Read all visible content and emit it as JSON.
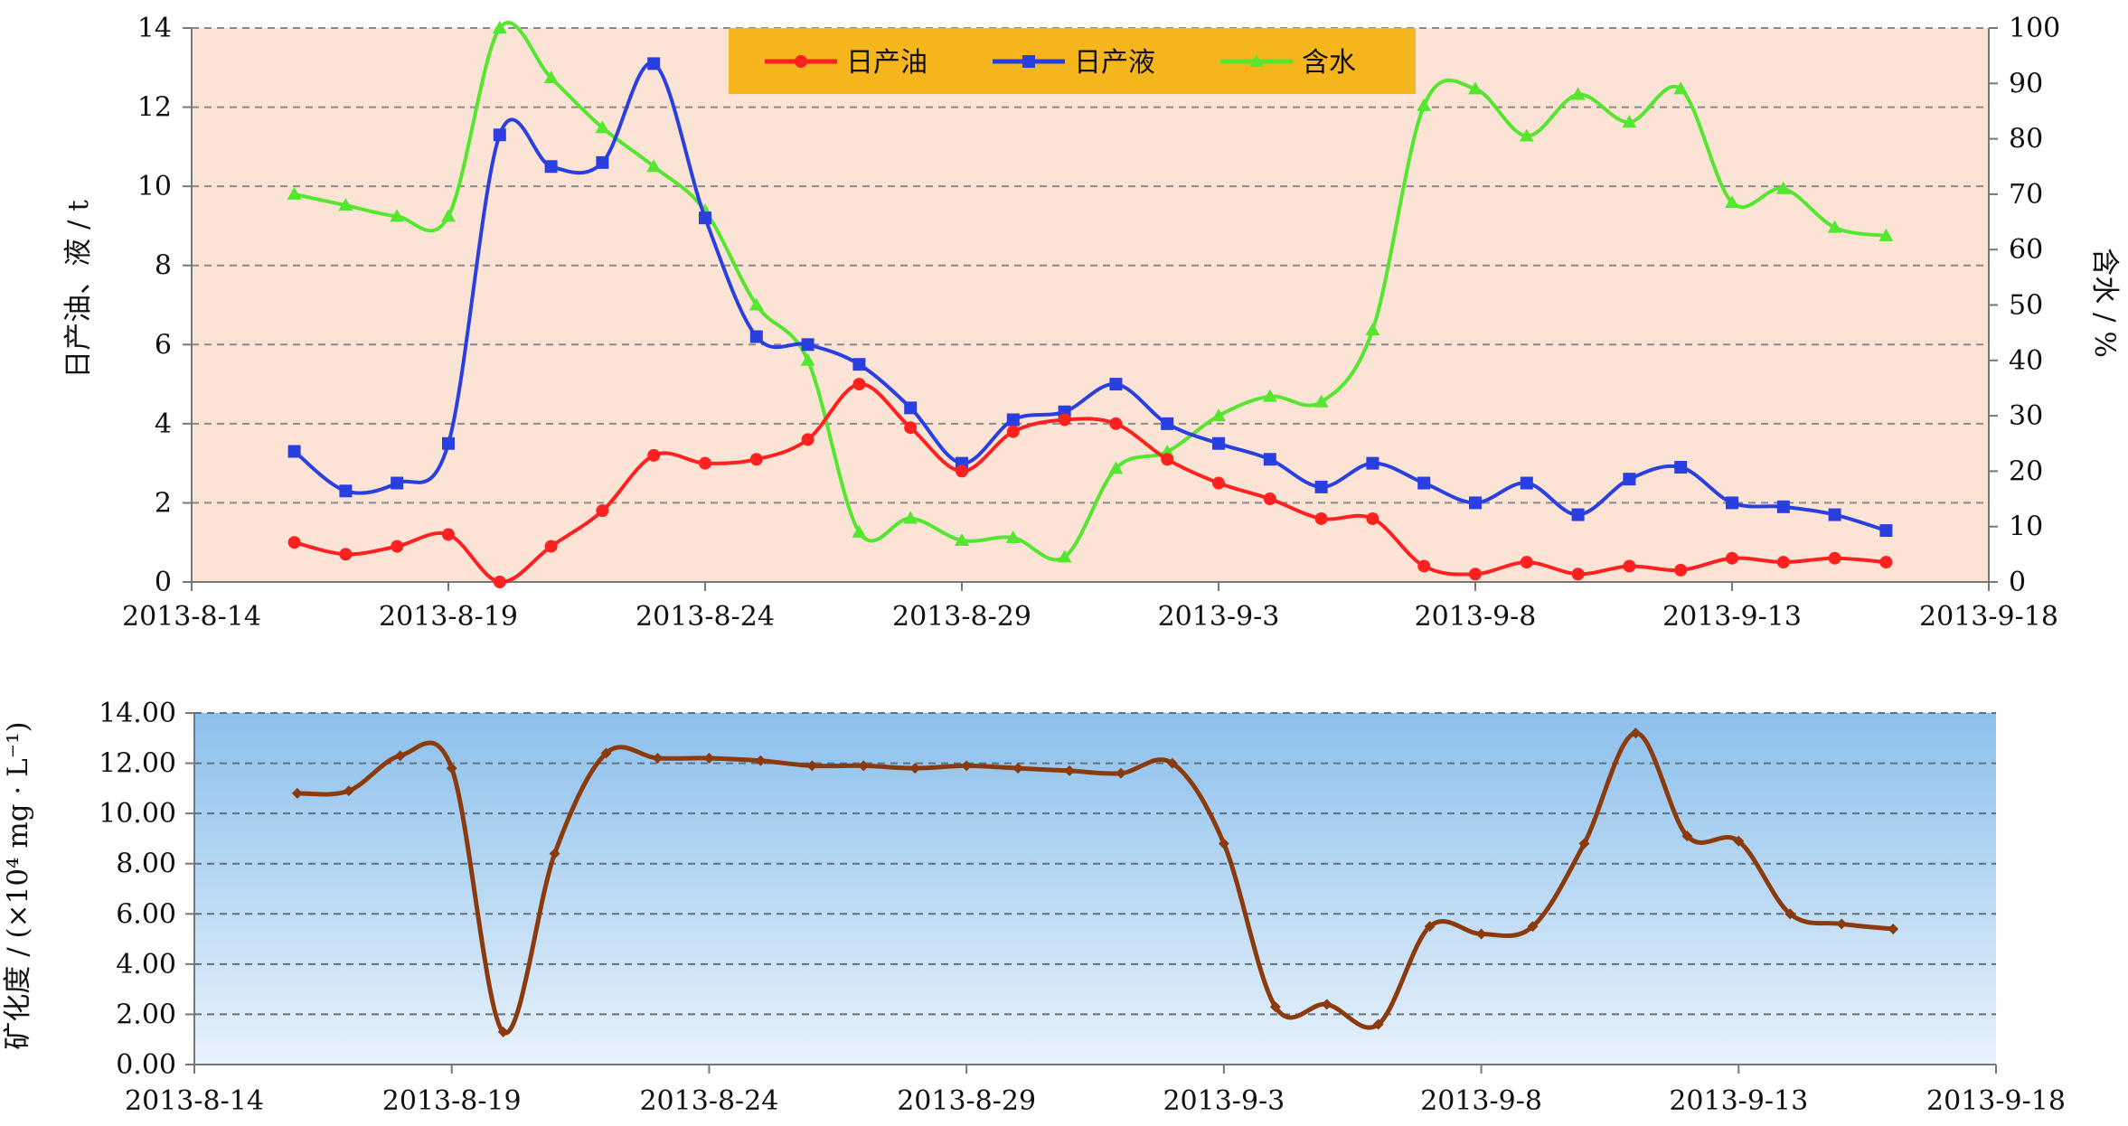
{
  "charts": {
    "top": {
      "type": "line",
      "ylabel_left": "日产油、液 / t",
      "ylabel_right": "含水 / %",
      "x_ticks": [
        "2013-8-14",
        "2013-8-19",
        "2013-8-24",
        "2013-8-29",
        "2013-9-3",
        "2013-9-8",
        "2013-9-13",
        "2013-9-18"
      ],
      "y_left_ticks": [
        "0",
        "2",
        "4",
        "6",
        "8",
        "10",
        "12",
        "14"
      ],
      "y_right_ticks": [
        "0",
        "10",
        "20",
        "30",
        "40",
        "50",
        "60",
        "70",
        "80",
        "90",
        "100"
      ],
      "legend_placement": "top-center",
      "background": "#fbe3d6",
      "legend_background": "#f5b51d",
      "grid": true
    },
    "bottom": {
      "type": "line",
      "ylabel": "矿化度 / (×10⁴ mg · L⁻¹)",
      "x_ticks": [
        "2013-8-14",
        "2013-8-19",
        "2013-8-24",
        "2013-8-29",
        "2013-9-3",
        "2013-9-8",
        "2013-9-13",
        "2013-9-18"
      ],
      "y_ticks": [
        "0.00",
        "2.00",
        "4.00",
        "6.00",
        "8.00",
        "10.00",
        "12.00",
        "14.00"
      ],
      "background_top": "#8cc0ec",
      "background_bottom": "#e8f2fb",
      "grid": true
    }
  },
  "chart_data": [
    {
      "type": "line",
      "x_axis": {
        "type": "date",
        "range": [
          "2013-08-14",
          "2013-09-18"
        ]
      },
      "y_left_range": [
        0,
        14
      ],
      "y_right_range": [
        0,
        100
      ],
      "series": [
        {
          "name": "日产油",
          "axis": "left",
          "color": "#ff2020",
          "marker": "circle",
          "x": [
            "2013-08-16",
            "2013-08-17",
            "2013-08-18",
            "2013-08-19",
            "2013-08-20",
            "2013-08-21",
            "2013-08-22",
            "2013-08-23",
            "2013-08-24",
            "2013-08-25",
            "2013-08-26",
            "2013-08-27",
            "2013-08-28",
            "2013-08-29",
            "2013-08-30",
            "2013-08-31",
            "2013-09-01",
            "2013-09-02",
            "2013-09-03",
            "2013-09-04",
            "2013-09-05",
            "2013-09-06",
            "2013-09-07",
            "2013-09-08",
            "2013-09-09",
            "2013-09-10",
            "2013-09-11",
            "2013-09-12",
            "2013-09-13",
            "2013-09-14",
            "2013-09-15",
            "2013-09-16"
          ],
          "values": [
            1.0,
            0.7,
            0.9,
            1.2,
            0.0,
            0.9,
            1.8,
            3.2,
            3.0,
            3.1,
            3.6,
            5.0,
            3.9,
            2.8,
            3.8,
            4.1,
            4.0,
            3.1,
            2.5,
            2.1,
            1.6,
            1.6,
            0.4,
            0.2,
            0.5,
            0.2,
            0.4,
            0.3,
            0.6,
            0.5,
            0.6,
            0.5
          ]
        },
        {
          "name": "日产液",
          "axis": "left",
          "color": "#2a3fe0",
          "marker": "square",
          "x": [
            "2013-08-16",
            "2013-08-17",
            "2013-08-18",
            "2013-08-19",
            "2013-08-20",
            "2013-08-21",
            "2013-08-22",
            "2013-08-23",
            "2013-08-24",
            "2013-08-25",
            "2013-08-26",
            "2013-08-27",
            "2013-08-28",
            "2013-08-29",
            "2013-08-30",
            "2013-08-31",
            "2013-09-01",
            "2013-09-02",
            "2013-09-03",
            "2013-09-04",
            "2013-09-05",
            "2013-09-06",
            "2013-09-07",
            "2013-09-08",
            "2013-09-09",
            "2013-09-10",
            "2013-09-11",
            "2013-09-12",
            "2013-09-13",
            "2013-09-14",
            "2013-09-15",
            "2013-09-16"
          ],
          "values": [
            3.3,
            2.3,
            2.5,
            3.5,
            11.3,
            10.5,
            10.6,
            13.1,
            9.2,
            6.2,
            6.0,
            5.5,
            4.4,
            3.0,
            4.1,
            4.3,
            5.0,
            4.0,
            3.5,
            3.1,
            2.4,
            3.0,
            2.5,
            2.0,
            2.5,
            1.7,
            2.6,
            2.9,
            2.0,
            1.9,
            1.7,
            1.3
          ]
        },
        {
          "name": "含水",
          "axis": "right",
          "color": "#55e62f",
          "marker": "triangle",
          "x": [
            "2013-08-16",
            "2013-08-17",
            "2013-08-18",
            "2013-08-19",
            "2013-08-20",
            "2013-08-21",
            "2013-08-22",
            "2013-08-23",
            "2013-08-24",
            "2013-08-25",
            "2013-08-26",
            "2013-08-27",
            "2013-08-28",
            "2013-08-29",
            "2013-08-30",
            "2013-08-31",
            "2013-09-01",
            "2013-09-02",
            "2013-09-03",
            "2013-09-04",
            "2013-09-05",
            "2013-09-06",
            "2013-09-07",
            "2013-09-08",
            "2013-09-09",
            "2013-09-10",
            "2013-09-11",
            "2013-09-12",
            "2013-09-13",
            "2013-09-14",
            "2013-09-15",
            "2013-09-16"
          ],
          "values": [
            70,
            68,
            66,
            66,
            100,
            91,
            82,
            75,
            67,
            50,
            40,
            9,
            11.5,
            7.5,
            8,
            4.5,
            20.5,
            23.5,
            30,
            33.5,
            32.5,
            45.5,
            86,
            89,
            80.5,
            88,
            83,
            89,
            68.5,
            71,
            64,
            62.5
          ]
        }
      ]
    },
    {
      "type": "line",
      "x_axis": {
        "type": "date",
        "range": [
          "2013-08-14",
          "2013-09-18"
        ]
      },
      "y_range": [
        0,
        14
      ],
      "series": [
        {
          "color": "#8b3a0e",
          "marker": "diamond",
          "x": [
            "2013-08-16",
            "2013-08-17",
            "2013-08-18",
            "2013-08-19",
            "2013-08-20",
            "2013-08-21",
            "2013-08-22",
            "2013-08-23",
            "2013-08-24",
            "2013-08-25",
            "2013-08-26",
            "2013-08-27",
            "2013-08-28",
            "2013-08-29",
            "2013-08-30",
            "2013-08-31",
            "2013-09-01",
            "2013-09-02",
            "2013-09-03",
            "2013-09-04",
            "2013-09-05",
            "2013-09-06",
            "2013-09-07",
            "2013-09-08",
            "2013-09-09",
            "2013-09-10",
            "2013-09-11",
            "2013-09-12",
            "2013-09-13",
            "2013-09-14",
            "2013-09-15",
            "2013-09-16"
          ],
          "values": [
            10.8,
            10.9,
            12.3,
            11.8,
            1.3,
            8.4,
            12.4,
            12.2,
            12.2,
            12.1,
            11.9,
            11.9,
            11.8,
            11.9,
            11.8,
            11.7,
            11.6,
            12.0,
            8.8,
            2.3,
            2.4,
            1.6,
            5.5,
            5.2,
            5.5,
            8.8,
            13.2,
            9.1,
            8.9,
            6.0,
            5.6,
            5.4
          ]
        }
      ]
    }
  ]
}
